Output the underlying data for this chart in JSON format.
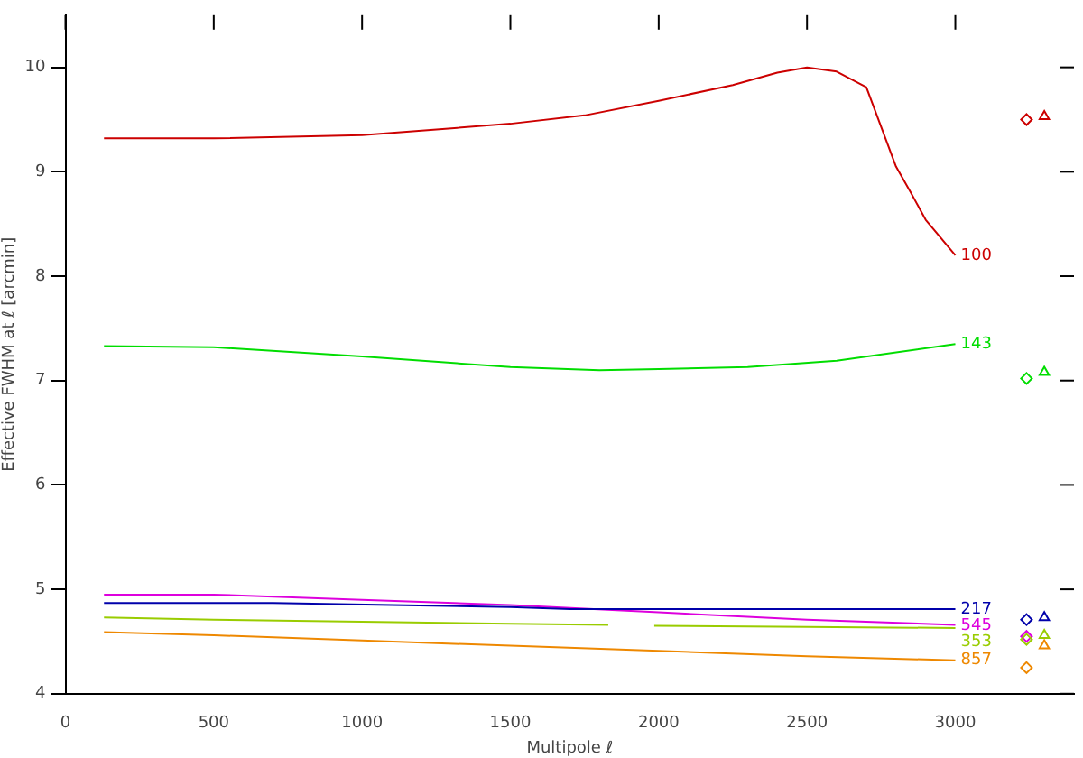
{
  "chart_data": {
    "type": "line",
    "xlabel": "Multipole ℓ",
    "ylabel": "Effective FWHM at ℓ [arcmin]",
    "xlim": [
      0,
      3400
    ],
    "xticks": [
      0,
      500,
      1000,
      1500,
      2000,
      2500,
      3000
    ],
    "ylim": [
      4,
      10.5
    ],
    "yticks": [
      4,
      5,
      6,
      7,
      8,
      9,
      10
    ],
    "grid": false,
    "legend": false,
    "marker": "none",
    "line_style": "solid",
    "series": [
      {
        "name": "100",
        "color": "#cc0000",
        "x": [
          130,
          500,
          1000,
          1500,
          1750,
          2000,
          2250,
          2400,
          2500,
          2600,
          2700,
          2800,
          2850,
          2900,
          3000
        ],
        "values": [
          9.32,
          9.32,
          9.35,
          9.46,
          9.54,
          9.68,
          9.83,
          9.95,
          10.0,
          9.96,
          9.81,
          9.05,
          8.8,
          8.54,
          8.2
        ]
      },
      {
        "name": "143",
        "color": "#00dd00",
        "x": [
          130,
          500,
          1000,
          1500,
          1800,
          2000,
          2300,
          2600,
          3000
        ],
        "values": [
          7.33,
          7.32,
          7.23,
          7.13,
          7.1,
          7.11,
          7.13,
          7.19,
          7.35
        ]
      },
      {
        "name": "217",
        "color": "#0000aa",
        "x": [
          130,
          700,
          1100,
          1500,
          1700,
          2000,
          3000
        ],
        "values": [
          4.87,
          4.87,
          4.85,
          4.83,
          4.81,
          4.81,
          4.81
        ]
      },
      {
        "name": "545",
        "color": "#dd00dd",
        "x": [
          130,
          500,
          1000,
          1500,
          2000,
          2500,
          3000
        ],
        "values": [
          4.95,
          4.95,
          4.9,
          4.85,
          4.78,
          4.71,
          4.66
        ]
      },
      {
        "name": "353",
        "color": "#99cc00",
        "x": [
          130,
          500,
          1000,
          1500,
          1830,
          1910,
          1985,
          2500,
          3000
        ],
        "values": [
          4.73,
          4.71,
          4.69,
          4.67,
          4.66,
          null,
          4.65,
          4.64,
          4.63
        ]
      },
      {
        "name": "857",
        "color": "#ee8800",
        "x": [
          130,
          500,
          1000,
          1500,
          2000,
          2500,
          3000
        ],
        "values": [
          4.59,
          4.56,
          4.51,
          4.46,
          4.41,
          4.36,
          4.32
        ]
      },
      {
        "type": "scatter",
        "marker": "diamond",
        "x": [
          3240,
          3240,
          3240,
          3240,
          3240,
          3240
        ],
        "values": [
          9.5,
          7.02,
          4.71,
          4.55,
          4.52,
          4.25
        ],
        "colors": [
          "#cc0000",
          "#00dd00",
          "#0000aa",
          "#dd00dd",
          "#99cc00",
          "#ee8800"
        ]
      },
      {
        "type": "scatter",
        "marker": "triangle",
        "x": [
          3300,
          3300,
          3300,
          3300,
          3300
        ],
        "values": [
          9.53,
          7.08,
          4.73,
          4.56,
          4.46
        ],
        "colors": [
          "#cc0000",
          "#00dd00",
          "#0000aa",
          "#99cc00",
          "#ee8800"
        ]
      }
    ]
  }
}
